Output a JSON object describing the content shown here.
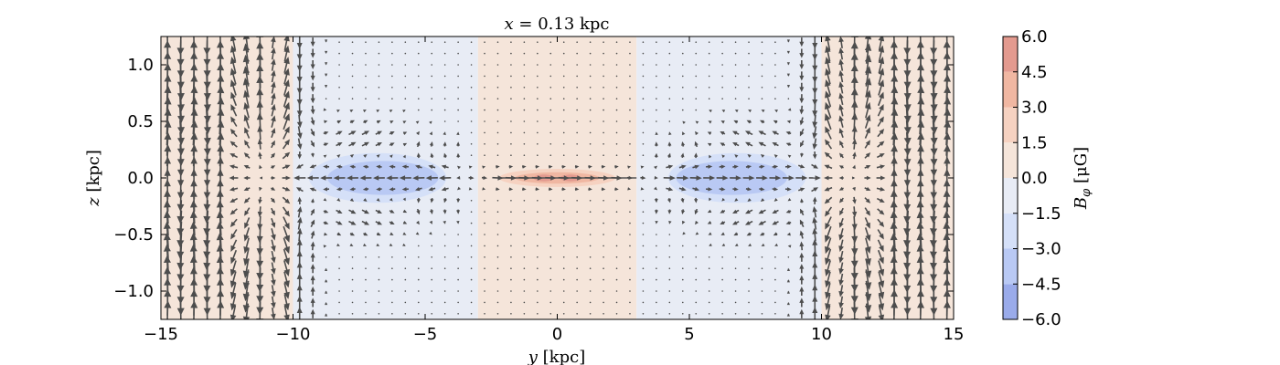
{
  "chart_data": {
    "type": "heatmap",
    "subtype": "filled-contour with quiver field",
    "title": "x = 0.13 kpc",
    "title_parts": {
      "var": "x",
      "eq": " = ",
      "num": "0.13",
      "unit": " kpc"
    },
    "xlabel": "y [kpc]",
    "xlabel_parts": {
      "var": "y",
      "unit": " [kpc]"
    },
    "ylabel": "z [kpc]",
    "ylabel_parts": {
      "var": "z",
      "unit": " [kpc]"
    },
    "xlim": [
      -15,
      15
    ],
    "ylim": [
      -1.25,
      1.25
    ],
    "xticks": [
      -15,
      -10,
      -5,
      0,
      5,
      10,
      15
    ],
    "xtick_labels": [
      "−15",
      "−10",
      "−5",
      "0",
      "5",
      "10",
      "15"
    ],
    "yticks": [
      -1.0,
      -0.5,
      0.0,
      0.5,
      1.0
    ],
    "ytick_labels": [
      "−1.0",
      "−0.5",
      "0.0",
      "0.5",
      "1.0"
    ],
    "colorbar": {
      "label": "B_phi [μG]",
      "label_parts": {
        "var": "B",
        "sub": "φ",
        "unit": " [μG]"
      },
      "levels": [
        -6.0,
        -4.5,
        -3.0,
        -1.5,
        0.0,
        1.5,
        3.0,
        4.5,
        6.0
      ],
      "tick_labels": [
        "−6.0",
        "−4.5",
        "−3.0",
        "−1.5",
        "0.0",
        "1.5",
        "3.0",
        "4.5",
        "6.0"
      ],
      "colors": [
        "#9aabea",
        "#b9c9f4",
        "#d5e0f8",
        "#e8ecf5",
        "#f5e5da",
        "#f6d2c1",
        "#f0b7a2",
        "#e39a8f"
      ]
    },
    "regions": [
      {
        "y_from": -15,
        "y_to": -10,
        "band": 4
      },
      {
        "y_from": -10,
        "y_to": -3,
        "band": 3
      },
      {
        "y_from": -3,
        "y_to": 3,
        "band": 4
      },
      {
        "y_from": 3,
        "y_to": 10,
        "band": 3
      },
      {
        "y_from": 10,
        "y_to": 15,
        "band": 4
      }
    ],
    "blobs": [
      {
        "cy": -6.8,
        "cz": 0.0,
        "ry": 2.6,
        "rz": 0.22,
        "band": 2
      },
      {
        "cy": -6.6,
        "cz": 0.0,
        "ry": 2.1,
        "rz": 0.15,
        "band": 1
      },
      {
        "cy": 6.8,
        "cz": 0.0,
        "ry": 2.6,
        "rz": 0.22,
        "band": 2
      },
      {
        "cy": 6.6,
        "cz": 0.0,
        "ry": 2.1,
        "rz": 0.15,
        "band": 1
      },
      {
        "cy": 0.0,
        "cz": 0.0,
        "ry": 2.2,
        "rz": 0.08,
        "band": 5
      },
      {
        "cy": 0.0,
        "cz": 0.0,
        "ry": 1.6,
        "rz": 0.05,
        "band": 6
      },
      {
        "cy": -0.5,
        "cz": 0.0,
        "ry": 0.4,
        "rz": 0.03,
        "band": 7
      },
      {
        "cy": 0.5,
        "cz": 0.0,
        "ry": 0.4,
        "rz": 0.03,
        "band": 7
      }
    ],
    "quiver": {
      "y_spacing": 0.5,
      "z_spacing": 0.1,
      "color": "#4d4d4d"
    },
    "midplane_line": {
      "y_from": -2.2,
      "y_to": 3.0,
      "z": 0.0
    }
  }
}
